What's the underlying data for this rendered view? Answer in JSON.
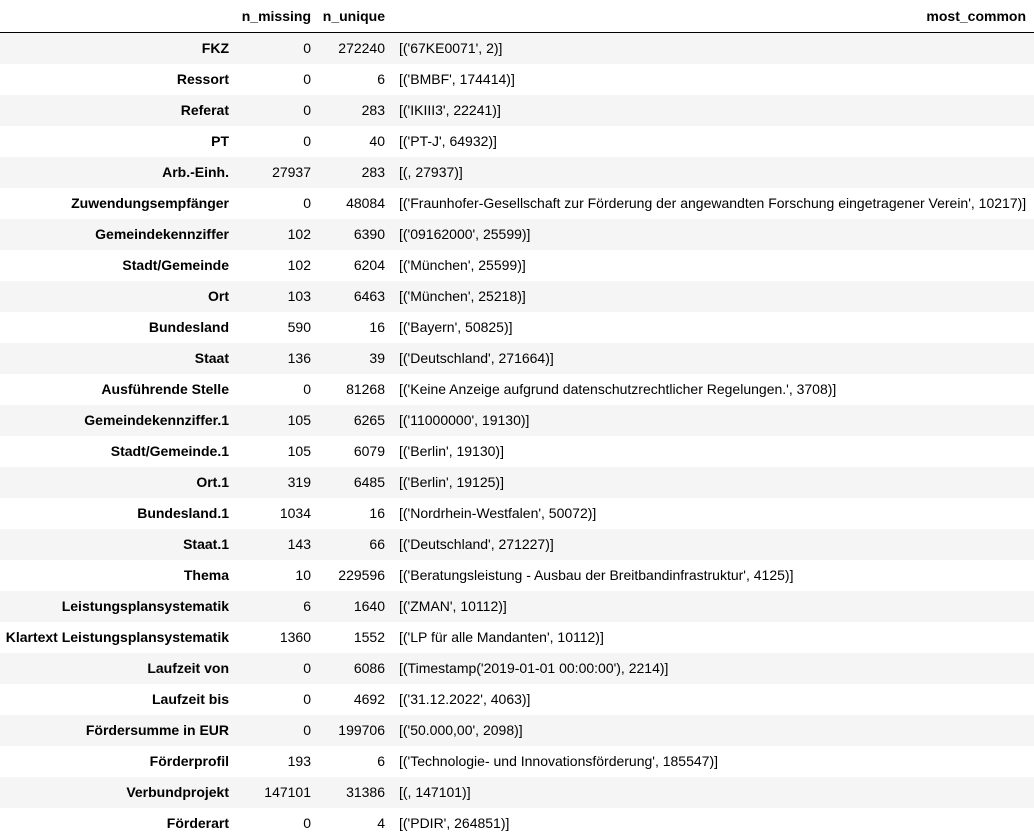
{
  "columns": {
    "index": "",
    "n_missing": "n_missing",
    "n_unique": "n_unique",
    "most_common": "most_common"
  },
  "rows": [
    {
      "name": "FKZ",
      "n_missing": "0",
      "n_unique": "272240",
      "most_common": "[('67KE0071', 2)]"
    },
    {
      "name": "Ressort",
      "n_missing": "0",
      "n_unique": "6",
      "most_common": "[('BMBF', 174414)]"
    },
    {
      "name": "Referat",
      "n_missing": "0",
      "n_unique": "283",
      "most_common": "[('IKIII3', 22241)]"
    },
    {
      "name": "PT",
      "n_missing": "0",
      "n_unique": "40",
      "most_common": "[('PT-J', 64932)]"
    },
    {
      "name": "Arb.-Einh.",
      "n_missing": "27937",
      "n_unique": "283",
      "most_common": "[(, 27937)]"
    },
    {
      "name": "Zuwendungsempfänger",
      "n_missing": "0",
      "n_unique": "48084",
      "most_common": "[('Fraunhofer-Gesellschaft zur Förderung der angewandten Forschung eingetragener Verein', 10217)]"
    },
    {
      "name": "Gemeindekennziffer",
      "n_missing": "102",
      "n_unique": "6390",
      "most_common": "[('09162000', 25599)]"
    },
    {
      "name": "Stadt/Gemeinde",
      "n_missing": "102",
      "n_unique": "6204",
      "most_common": "[('München', 25599)]"
    },
    {
      "name": "Ort",
      "n_missing": "103",
      "n_unique": "6463",
      "most_common": "[('München', 25218)]"
    },
    {
      "name": "Bundesland",
      "n_missing": "590",
      "n_unique": "16",
      "most_common": "[('Bayern', 50825)]"
    },
    {
      "name": "Staat",
      "n_missing": "136",
      "n_unique": "39",
      "most_common": "[('Deutschland', 271664)]"
    },
    {
      "name": "Ausführende Stelle",
      "n_missing": "0",
      "n_unique": "81268",
      "most_common": "[('Keine Anzeige aufgrund datenschutzrechtlicher Regelungen.', 3708)]"
    },
    {
      "name": "Gemeindekennziffer.1",
      "n_missing": "105",
      "n_unique": "6265",
      "most_common": "[('11000000', 19130)]"
    },
    {
      "name": "Stadt/Gemeinde.1",
      "n_missing": "105",
      "n_unique": "6079",
      "most_common": "[('Berlin', 19130)]"
    },
    {
      "name": "Ort.1",
      "n_missing": "319",
      "n_unique": "6485",
      "most_common": "[('Berlin', 19125)]"
    },
    {
      "name": "Bundesland.1",
      "n_missing": "1034",
      "n_unique": "16",
      "most_common": "[('Nordrhein-Westfalen', 50072)]"
    },
    {
      "name": "Staat.1",
      "n_missing": "143",
      "n_unique": "66",
      "most_common": "[('Deutschland', 271227)]"
    },
    {
      "name": "Thema",
      "n_missing": "10",
      "n_unique": "229596",
      "most_common": "[('Beratungsleistung - Ausbau der Breitbandinfrastruktur', 4125)]"
    },
    {
      "name": "Leistungsplansystematik",
      "n_missing": "6",
      "n_unique": "1640",
      "most_common": "[('ZMAN', 10112)]"
    },
    {
      "name": "Klartext Leistungsplansystematik",
      "n_missing": "1360",
      "n_unique": "1552",
      "most_common": "[('LP für alle Mandanten', 10112)]"
    },
    {
      "name": "Laufzeit von",
      "n_missing": "0",
      "n_unique": "6086",
      "most_common": "[(Timestamp('2019-01-01 00:00:00'), 2214)]"
    },
    {
      "name": "Laufzeit bis",
      "n_missing": "0",
      "n_unique": "4692",
      "most_common": "[('31.12.2022', 4063)]"
    },
    {
      "name": "Fördersumme in EUR",
      "n_missing": "0",
      "n_unique": "199706",
      "most_common": "[('50.000,00', 2098)]"
    },
    {
      "name": "Förderprofil",
      "n_missing": "193",
      "n_unique": "6",
      "most_common": "[('Technologie- und Innovationsförderung', 185547)]"
    },
    {
      "name": "Verbundprojekt",
      "n_missing": "147101",
      "n_unique": "31386",
      "most_common": "[(, 147101)]"
    },
    {
      "name": "Förderart",
      "n_missing": "0",
      "n_unique": "4",
      "most_common": "[('PDIR', 264851)]"
    }
  ]
}
